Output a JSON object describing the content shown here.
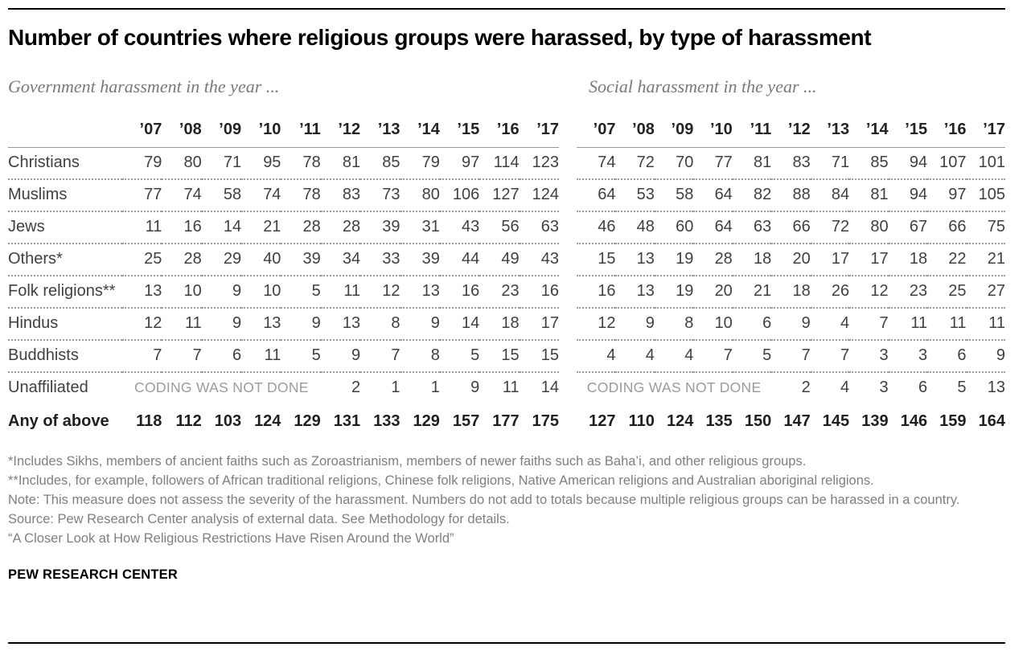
{
  "title": "Number of countries where religious groups were harassed, by type of harassment",
  "footer": "PEW RESEARCH CENTER",
  "colors": {
    "rule": "#000000",
    "table_text": "#404040",
    "header_text": "#232323",
    "coding_note_gray": "#9b9b9b",
    "footnote_gray": "#7e7f81",
    "subtitle_gray": "#7a7a7c"
  },
  "notes": [
    "*Includes Sikhs, members of ancient faiths such as Zoroastrianism, members of newer faiths such as Baha’i, and other religious groups.",
    "**Includes, for example, followers of African traditional religions, Chinese folk religions, Native American religions and Australian aboriginal religions.",
    "Note: This measure does not assess the severity of the harassment. Numbers do not add to totals because multiple religious groups can be harassed in a country.",
    "Source: Pew Research Center analysis of external data. See Methodology for details.",
    "“A Closer Look at How Religious Restrictions Have Risen Around the World”"
  ],
  "chart_data": [
    {
      "type": "table",
      "title": "Government harassment in the year ...",
      "show_row_labels": true,
      "columns": [
        "’07",
        "’08",
        "’09",
        "’10",
        "’11",
        "’12",
        "’13",
        "’14",
        "’15",
        "’16",
        "’17"
      ],
      "rows": [
        {
          "label": "Christians",
          "values": [
            79,
            80,
            71,
            95,
            78,
            81,
            85,
            79,
            97,
            114,
            123
          ]
        },
        {
          "label": "Muslims",
          "values": [
            77,
            74,
            58,
            74,
            78,
            83,
            73,
            80,
            106,
            127,
            124
          ]
        },
        {
          "label": "Jews",
          "values": [
            11,
            16,
            14,
            21,
            28,
            28,
            39,
            31,
            43,
            56,
            63
          ]
        },
        {
          "label": "Others*",
          "values": [
            25,
            28,
            29,
            40,
            39,
            34,
            33,
            39,
            44,
            49,
            43
          ]
        },
        {
          "label": "Folk religions**",
          "values": [
            13,
            10,
            9,
            10,
            5,
            11,
            12,
            13,
            16,
            23,
            16
          ]
        },
        {
          "label": "Hindus",
          "values": [
            12,
            11,
            9,
            13,
            9,
            13,
            8,
            9,
            14,
            18,
            17
          ]
        },
        {
          "label": "Buddhists",
          "values": [
            7,
            7,
            6,
            11,
            5,
            9,
            7,
            8,
            5,
            15,
            15
          ]
        },
        {
          "label": "Unaffiliated",
          "note": "CODING WAS NOT DONE",
          "note_span": 5,
          "values": [
            2,
            1,
            1,
            9,
            11,
            14
          ]
        },
        {
          "label": "Any of above",
          "bold": true,
          "values": [
            118,
            112,
            103,
            124,
            129,
            131,
            133,
            129,
            157,
            177,
            175
          ]
        }
      ]
    },
    {
      "type": "table",
      "title": "Social harassment in the year ...",
      "show_row_labels": false,
      "columns": [
        "’07",
        "’08",
        "’09",
        "’10",
        "’11",
        "’12",
        "’13",
        "’14",
        "’15",
        "’16",
        "’17"
      ],
      "rows": [
        {
          "label": "Christians",
          "values": [
            74,
            72,
            70,
            77,
            81,
            83,
            71,
            85,
            94,
            107,
            101
          ]
        },
        {
          "label": "Muslims",
          "values": [
            64,
            53,
            58,
            64,
            82,
            88,
            84,
            81,
            94,
            97,
            105
          ]
        },
        {
          "label": "Jews",
          "values": [
            46,
            48,
            60,
            64,
            63,
            66,
            72,
            80,
            67,
            66,
            75
          ]
        },
        {
          "label": "Others*",
          "values": [
            15,
            13,
            19,
            28,
            18,
            20,
            17,
            17,
            18,
            22,
            21
          ]
        },
        {
          "label": "Folk religions**",
          "values": [
            16,
            13,
            19,
            20,
            21,
            18,
            26,
            12,
            23,
            25,
            27
          ]
        },
        {
          "label": "Hindus",
          "values": [
            12,
            9,
            8,
            10,
            6,
            9,
            4,
            7,
            11,
            11,
            11
          ]
        },
        {
          "label": "Buddhists",
          "values": [
            4,
            4,
            4,
            7,
            5,
            7,
            7,
            3,
            3,
            6,
            9
          ]
        },
        {
          "label": "Unaffiliated",
          "note": "CODING WAS NOT DONE",
          "note_span": 5,
          "values": [
            2,
            4,
            3,
            6,
            5,
            13
          ]
        },
        {
          "label": "Any of above",
          "bold": true,
          "values": [
            127,
            110,
            124,
            135,
            150,
            147,
            145,
            139,
            146,
            159,
            164
          ]
        }
      ]
    }
  ]
}
